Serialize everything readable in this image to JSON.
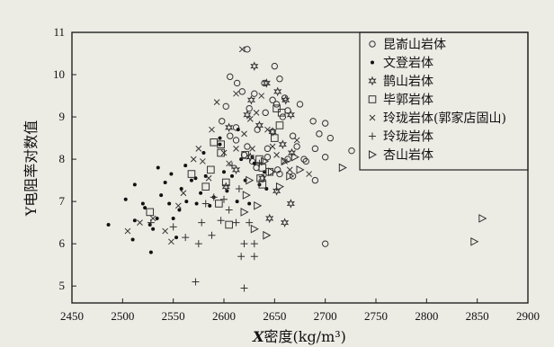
{
  "chart_data": {
    "type": "scatter",
    "title": "",
    "xlabel_var": "X",
    "xlabel_text": "密度(kg/m³)",
    "ylabel": "Y电阻率对数值",
    "xlim": [
      2450,
      2900
    ],
    "ylim": [
      4.6,
      11
    ],
    "xticks": [
      2450,
      2500,
      2550,
      2600,
      2650,
      2700,
      2750,
      2800,
      2850,
      2900
    ],
    "yticks": [
      5,
      6,
      7,
      8,
      9,
      10,
      11
    ],
    "grid": false,
    "legend_position": "top-right",
    "series": [
      {
        "name": "昆嵛山岩体",
        "marker": "circle",
        "points": [
          [
            2623,
            10.6
          ],
          [
            2606,
            9.95
          ],
          [
            2613,
            9.8
          ],
          [
            2640,
            9.8
          ],
          [
            2650,
            10.2
          ],
          [
            2655,
            9.9
          ],
          [
            2618,
            9.6
          ],
          [
            2630,
            9.55
          ],
          [
            2648,
            9.4
          ],
          [
            2660,
            9.45
          ],
          [
            2675,
            9.3
          ],
          [
            2602,
            9.25
          ],
          [
            2625,
            9.2
          ],
          [
            2641,
            9.1
          ],
          [
            2658,
            9.0
          ],
          [
            2663,
            9.15
          ],
          [
            2688,
            8.9
          ],
          [
            2700,
            8.85
          ],
          [
            2598,
            8.9
          ],
          [
            2612,
            8.75
          ],
          [
            2633,
            8.7
          ],
          [
            2648,
            8.65
          ],
          [
            2668,
            8.55
          ],
          [
            2694,
            8.6
          ],
          [
            2705,
            8.5
          ],
          [
            2612,
            8.45
          ],
          [
            2623,
            8.3
          ],
          [
            2643,
            8.25
          ],
          [
            2672,
            8.3
          ],
          [
            2690,
            8.25
          ],
          [
            2726,
            8.2
          ],
          [
            2620,
            8.1
          ],
          [
            2643,
            8.05
          ],
          [
            2663,
            8.0
          ],
          [
            2681,
            7.95
          ],
          [
            2700,
            8.05
          ],
          [
            2632,
            7.8
          ],
          [
            2653,
            7.75
          ],
          [
            2668,
            7.6
          ],
          [
            2690,
            7.5
          ],
          [
            2655,
            7.65
          ],
          [
            2628,
            7.95
          ],
          [
            2700,
            6.0
          ],
          [
            2679,
            8.0
          ],
          [
            2606,
            8.55
          ],
          [
            2652,
            9.3
          ]
        ]
      },
      {
        "name": "文登岩体",
        "marker": "dot",
        "points": [
          [
            2486,
            6.45
          ],
          [
            2503,
            7.05
          ],
          [
            2512,
            7.4
          ],
          [
            2520,
            6.95
          ],
          [
            2528,
            5.8
          ],
          [
            2530,
            6.35
          ],
          [
            2534,
            6.6
          ],
          [
            2538,
            7.15
          ],
          [
            2542,
            7.45
          ],
          [
            2546,
            6.95
          ],
          [
            2550,
            6.6
          ],
          [
            2553,
            6.15
          ],
          [
            2558,
            7.3
          ],
          [
            2563,
            7.0
          ],
          [
            2568,
            7.5
          ],
          [
            2573,
            6.95
          ],
          [
            2577,
            7.2
          ],
          [
            2582,
            7.6
          ],
          [
            2586,
            6.9
          ],
          [
            2590,
            7.1
          ],
          [
            2596,
            8.5
          ],
          [
            2600,
            7.7
          ],
          [
            2603,
            7.25
          ],
          [
            2608,
            7.6
          ],
          [
            2613,
            7.0
          ],
          [
            2617,
            8.0
          ],
          [
            2621,
            7.5
          ],
          [
            2625,
            6.95
          ],
          [
            2630,
            7.9
          ],
          [
            2635,
            7.4
          ],
          [
            2640,
            7.7
          ],
          [
            2512,
            6.55
          ],
          [
            2522,
            6.85
          ],
          [
            2535,
            7.8
          ],
          [
            2548,
            7.65
          ],
          [
            2562,
            7.85
          ],
          [
            2580,
            8.15
          ],
          [
            2596,
            8.35
          ],
          [
            2614,
            8.7
          ],
          [
            2628,
            8.05
          ],
          [
            2642,
            7.3
          ],
          [
            2510,
            6.1
          ],
          [
            2527,
            6.45
          ],
          [
            2556,
            6.8
          ],
          [
            2572,
            7.55
          ]
        ]
      },
      {
        "name": "鹊山岩体",
        "marker": "star",
        "points": [
          [
            2630,
            10.2
          ],
          [
            2642,
            9.8
          ],
          [
            2653,
            9.6
          ],
          [
            2661,
            9.4
          ],
          [
            2666,
            9.05
          ],
          [
            2623,
            9.05
          ],
          [
            2635,
            8.8
          ],
          [
            2648,
            8.65
          ],
          [
            2658,
            8.35
          ],
          [
            2667,
            8.15
          ],
          [
            2602,
            7.35
          ],
          [
            2612,
            7.75
          ],
          [
            2626,
            8.05
          ],
          [
            2638,
            7.55
          ],
          [
            2652,
            7.25
          ],
          [
            2660,
            6.5
          ],
          [
            2645,
            6.6
          ],
          [
            2666,
            6.95
          ],
          [
            2605,
            8.75
          ],
          [
            2627,
            9.4
          ]
        ]
      },
      {
        "name": "毕郭岩体",
        "marker": "square",
        "points": [
          [
            2527,
            6.75
          ],
          [
            2568,
            7.65
          ],
          [
            2582,
            7.35
          ],
          [
            2590,
            8.4
          ],
          [
            2597,
            8.35
          ],
          [
            2597,
            8.15
          ],
          [
            2602,
            7.45
          ],
          [
            2587,
            7.75
          ],
          [
            2595,
            6.95
          ],
          [
            2605,
            6.45
          ],
          [
            2635,
            8.0
          ],
          [
            2636,
            7.55
          ],
          [
            2638,
            7.8
          ],
          [
            2650,
            8.5
          ],
          [
            2655,
            8.8
          ],
          [
            2657,
            9.1
          ],
          [
            2652,
            9.2
          ],
          [
            2645,
            7.7
          ],
          [
            2638,
            7.4
          ],
          [
            2621,
            8.1
          ]
        ]
      },
      {
        "name": "玲珑岩体(郭家店固山)",
        "marker": "x",
        "points": [
          [
            2505,
            6.3
          ],
          [
            2517,
            6.5
          ],
          [
            2530,
            6.6
          ],
          [
            2542,
            6.3
          ],
          [
            2555,
            6.9
          ],
          [
            2560,
            7.2
          ],
          [
            2570,
            8.0
          ],
          [
            2579,
            7.95
          ],
          [
            2585,
            7.55
          ],
          [
            2593,
            9.35
          ],
          [
            2600,
            8.15
          ],
          [
            2605,
            7.9
          ],
          [
            2612,
            8.25
          ],
          [
            2618,
            10.6
          ],
          [
            2620,
            8.6
          ],
          [
            2626,
            8.95
          ],
          [
            2632,
            9.1
          ],
          [
            2637,
            9.5
          ],
          [
            2643,
            8.7
          ],
          [
            2648,
            8.3
          ],
          [
            2652,
            8.1
          ],
          [
            2660,
            7.95
          ],
          [
            2665,
            7.75
          ],
          [
            2672,
            8.45
          ],
          [
            2684,
            7.65
          ],
          [
            2548,
            6.05
          ],
          [
            2575,
            8.25
          ],
          [
            2588,
            8.7
          ],
          [
            2612,
            9.55
          ],
          [
            2628,
            8.25
          ]
        ]
      },
      {
        "name": "玲珑岩体",
        "marker": "plus",
        "points": [
          [
            2528,
            6.5
          ],
          [
            2550,
            6.4
          ],
          [
            2562,
            6.15
          ],
          [
            2575,
            6.0
          ],
          [
            2578,
            6.5
          ],
          [
            2582,
            6.95
          ],
          [
            2590,
            7.1
          ],
          [
            2597,
            6.55
          ],
          [
            2600,
            7.05
          ],
          [
            2605,
            6.8
          ],
          [
            2612,
            6.5
          ],
          [
            2615,
            7.3
          ],
          [
            2620,
            6.0
          ],
          [
            2625,
            6.5
          ],
          [
            2630,
            6.0
          ],
          [
            2635,
            7.9
          ],
          [
            2617,
            5.7
          ],
          [
            2620,
            4.95
          ],
          [
            2572,
            5.1
          ],
          [
            2588,
            6.2
          ],
          [
            2608,
            7.85
          ],
          [
            2630,
            5.7
          ]
        ]
      },
      {
        "name": "杏山岩体",
        "marker": "triangle-right",
        "points": [
          [
            2625,
            7.5
          ],
          [
            2633,
            6.9
          ],
          [
            2640,
            7.95
          ],
          [
            2642,
            6.2
          ],
          [
            2647,
            7.7
          ],
          [
            2655,
            7.35
          ],
          [
            2660,
            7.95
          ],
          [
            2665,
            7.6
          ],
          [
            2670,
            8.05
          ],
          [
            2675,
            7.75
          ],
          [
            2620,
            6.75
          ],
          [
            2622,
            7.15
          ],
          [
            2630,
            6.35
          ],
          [
            2717,
            7.8
          ],
          [
            2847,
            6.05
          ],
          [
            2855,
            6.6
          ]
        ]
      }
    ]
  }
}
